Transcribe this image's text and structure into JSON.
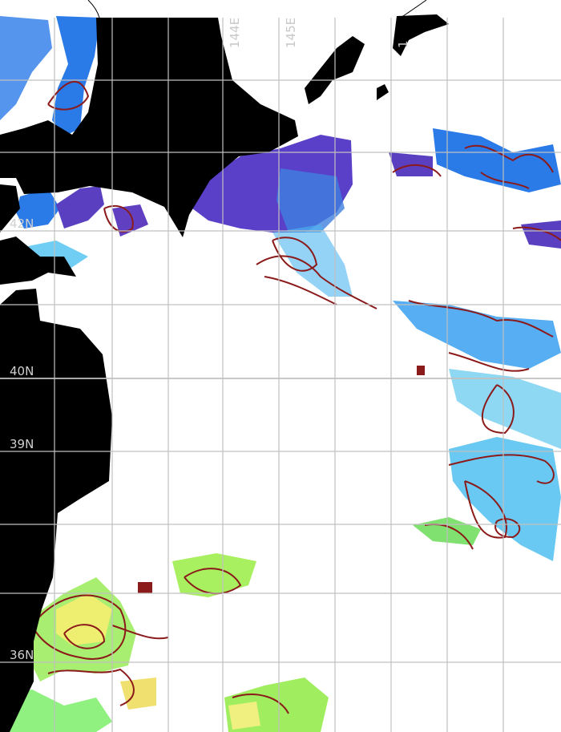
{
  "map": {
    "type": "sea-surface-temperature",
    "region": "Hokkaido / Tohoku coast, NW Pacific",
    "colors": {
      "land": "#000000",
      "ocean_nodata": "#ffffff",
      "grid": "#c0c0c0",
      "contour": "#8b1a1a",
      "cold_purple": "#5a3cc8",
      "cool_blue": "#2a7ae8",
      "light_blue": "#4cc0f0",
      "green": "#90ee60",
      "yellow": "#f0f080"
    },
    "lon_labels": [
      {
        "text": "144E",
        "lon": 144
      },
      {
        "text": "145E",
        "lon": 145
      },
      {
        "text": "1",
        "lon": 147
      }
    ],
    "lat_labels": [
      {
        "text": "42N",
        "lat": 42
      },
      {
        "text": "40N",
        "lat": 40
      },
      {
        "text": "39N",
        "lat": 39
      },
      {
        "text": "36N",
        "lat": 36
      }
    ]
  }
}
